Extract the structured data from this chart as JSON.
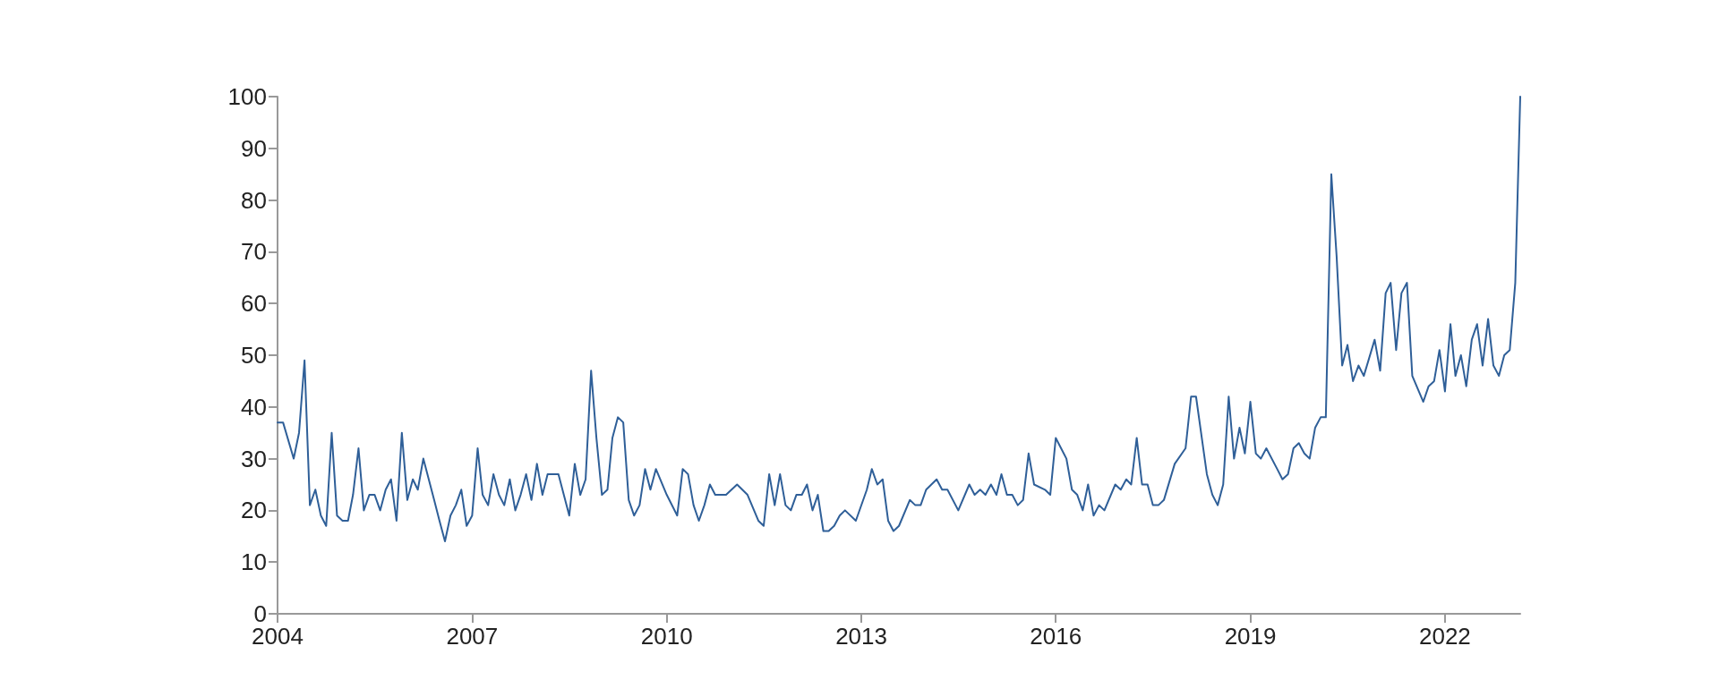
{
  "chart_data": {
    "type": "line",
    "color": "#2f5f98",
    "xlim": [
      "2004-01",
      "2023-03"
    ],
    "xticks": [
      "2004",
      "2007",
      "2010",
      "2013",
      "2016",
      "2019",
      "2022"
    ],
    "ylim": [
      0,
      100
    ],
    "yticks": [
      0,
      10,
      20,
      30,
      40,
      50,
      60,
      70,
      80,
      90,
      100
    ],
    "grid": false,
    "marker": "none",
    "line_style": "solid",
    "x": [
      "2004-01",
      "2004-02",
      "2004-04",
      "2004-05",
      "2004-06",
      "2004-07",
      "2004-08",
      "2004-09",
      "2004-10",
      "2004-11",
      "2004-12",
      "2005-01",
      "2005-02",
      "2005-03",
      "2005-04",
      "2005-05",
      "2005-06",
      "2005-07",
      "2005-08",
      "2005-09",
      "2005-10",
      "2005-11",
      "2005-12",
      "2006-01",
      "2006-02",
      "2006-03",
      "2006-04",
      "2006-06",
      "2006-07",
      "2006-08",
      "2006-09",
      "2006-10",
      "2006-11",
      "2006-12",
      "2007-01",
      "2007-02",
      "2007-03",
      "2007-04",
      "2007-05",
      "2007-06",
      "2007-07",
      "2007-08",
      "2007-09",
      "2007-10",
      "2007-11",
      "2007-12",
      "2008-01",
      "2008-02",
      "2008-03",
      "2008-05",
      "2008-07",
      "2008-08",
      "2008-09",
      "2008-10",
      "2008-11",
      "2008-12",
      "2009-01",
      "2009-02",
      "2009-03",
      "2009-04",
      "2009-05",
      "2009-06",
      "2009-07",
      "2009-08",
      "2009-09",
      "2009-10",
      "2009-11",
      "2010-01",
      "2010-03",
      "2010-04",
      "2010-05",
      "2010-06",
      "2010-07",
      "2010-08",
      "2010-09",
      "2010-10",
      "2010-12",
      "2011-02",
      "2011-04",
      "2011-06",
      "2011-07",
      "2011-08",
      "2011-09",
      "2011-10",
      "2011-11",
      "2011-12",
      "2012-01",
      "2012-02",
      "2012-03",
      "2012-04",
      "2012-05",
      "2012-06",
      "2012-07",
      "2012-08",
      "2012-09",
      "2012-10",
      "2012-12",
      "2013-02",
      "2013-03",
      "2013-04",
      "2013-05",
      "2013-06",
      "2013-07",
      "2013-08",
      "2013-10",
      "2013-11",
      "2013-12",
      "2014-01",
      "2014-03",
      "2014-04",
      "2014-05",
      "2014-07",
      "2014-09",
      "2014-10",
      "2014-11",
      "2014-12",
      "2015-01",
      "2015-02",
      "2015-03",
      "2015-04",
      "2015-05",
      "2015-06",
      "2015-07",
      "2015-08",
      "2015-09",
      "2015-11",
      "2015-12",
      "2016-01",
      "2016-03",
      "2016-04",
      "2016-05",
      "2016-06",
      "2016-07",
      "2016-08",
      "2016-09",
      "2016-10",
      "2016-12",
      "2017-01",
      "2017-02",
      "2017-03",
      "2017-04",
      "2017-05",
      "2017-06",
      "2017-07",
      "2017-08",
      "2017-09",
      "2017-11",
      "2018-01",
      "2018-02",
      "2018-03",
      "2018-05",
      "2018-06",
      "2018-07",
      "2018-08",
      "2018-09",
      "2018-10",
      "2018-11",
      "2018-12",
      "2019-01",
      "2019-02",
      "2019-03",
      "2019-04",
      "2019-06",
      "2019-07",
      "2019-08",
      "2019-09",
      "2019-10",
      "2019-11",
      "2019-12",
      "2020-01",
      "2020-02",
      "2020-03",
      "2020-04",
      "2020-05",
      "2020-06",
      "2020-07",
      "2020-08",
      "2020-09",
      "2020-10",
      "2020-12",
      "2021-01",
      "2021-02",
      "2021-03",
      "2021-04",
      "2021-05",
      "2021-06",
      "2021-07",
      "2021-09",
      "2021-10",
      "2021-11",
      "2021-12",
      "2022-01",
      "2022-02",
      "2022-03",
      "2022-04",
      "2022-05",
      "2022-06",
      "2022-07",
      "2022-08",
      "2022-09",
      "2022-10",
      "2022-11",
      "2022-12",
      "2023-01",
      "2023-02",
      "2023-03"
    ],
    "values": [
      37,
      37,
      30,
      35,
      49,
      21,
      24,
      19,
      17,
      35,
      19,
      18,
      18,
      23,
      32,
      20,
      23,
      23,
      20,
      24,
      26,
      18,
      35,
      22,
      26,
      24,
      30,
      22,
      18,
      14,
      19,
      21,
      24,
      17,
      19,
      32,
      23,
      21,
      27,
      23,
      21,
      26,
      20,
      23,
      27,
      22,
      29,
      23,
      27,
      27,
      19,
      29,
      23,
      26,
      47,
      34,
      23,
      24,
      34,
      38,
      37,
      22,
      19,
      21,
      28,
      24,
      28,
      23,
      19,
      28,
      27,
      21,
      18,
      21,
      25,
      23,
      23,
      25,
      23,
      18,
      17,
      27,
      21,
      27,
      21,
      20,
      23,
      23,
      25,
      20,
      23,
      16,
      16,
      17,
      19,
      20,
      18,
      24,
      28,
      25,
      26,
      18,
      16,
      17,
      22,
      21,
      21,
      24,
      26,
      24,
      24,
      20,
      25,
      23,
      24,
      23,
      25,
      23,
      27,
      23,
      23,
      21,
      22,
      31,
      25,
      24,
      23,
      34,
      30,
      24,
      23,
      20,
      25,
      19,
      21,
      20,
      25,
      24,
      26,
      25,
      34,
      25,
      25,
      21,
      21,
      22,
      29,
      32,
      42,
      42,
      27,
      23,
      21,
      25,
      42,
      30,
      36,
      31,
      41,
      31,
      30,
      32,
      28,
      26,
      27,
      32,
      33,
      31,
      30,
      36,
      38,
      38,
      85,
      69,
      48,
      52,
      45,
      48,
      46,
      53,
      47,
      62,
      64,
      51,
      62,
      64,
      46,
      41,
      44,
      45,
      51,
      43,
      56,
      46,
      50,
      44,
      53,
      56,
      48,
      57,
      48,
      46,
      50,
      51,
      64,
      100
    ]
  }
}
